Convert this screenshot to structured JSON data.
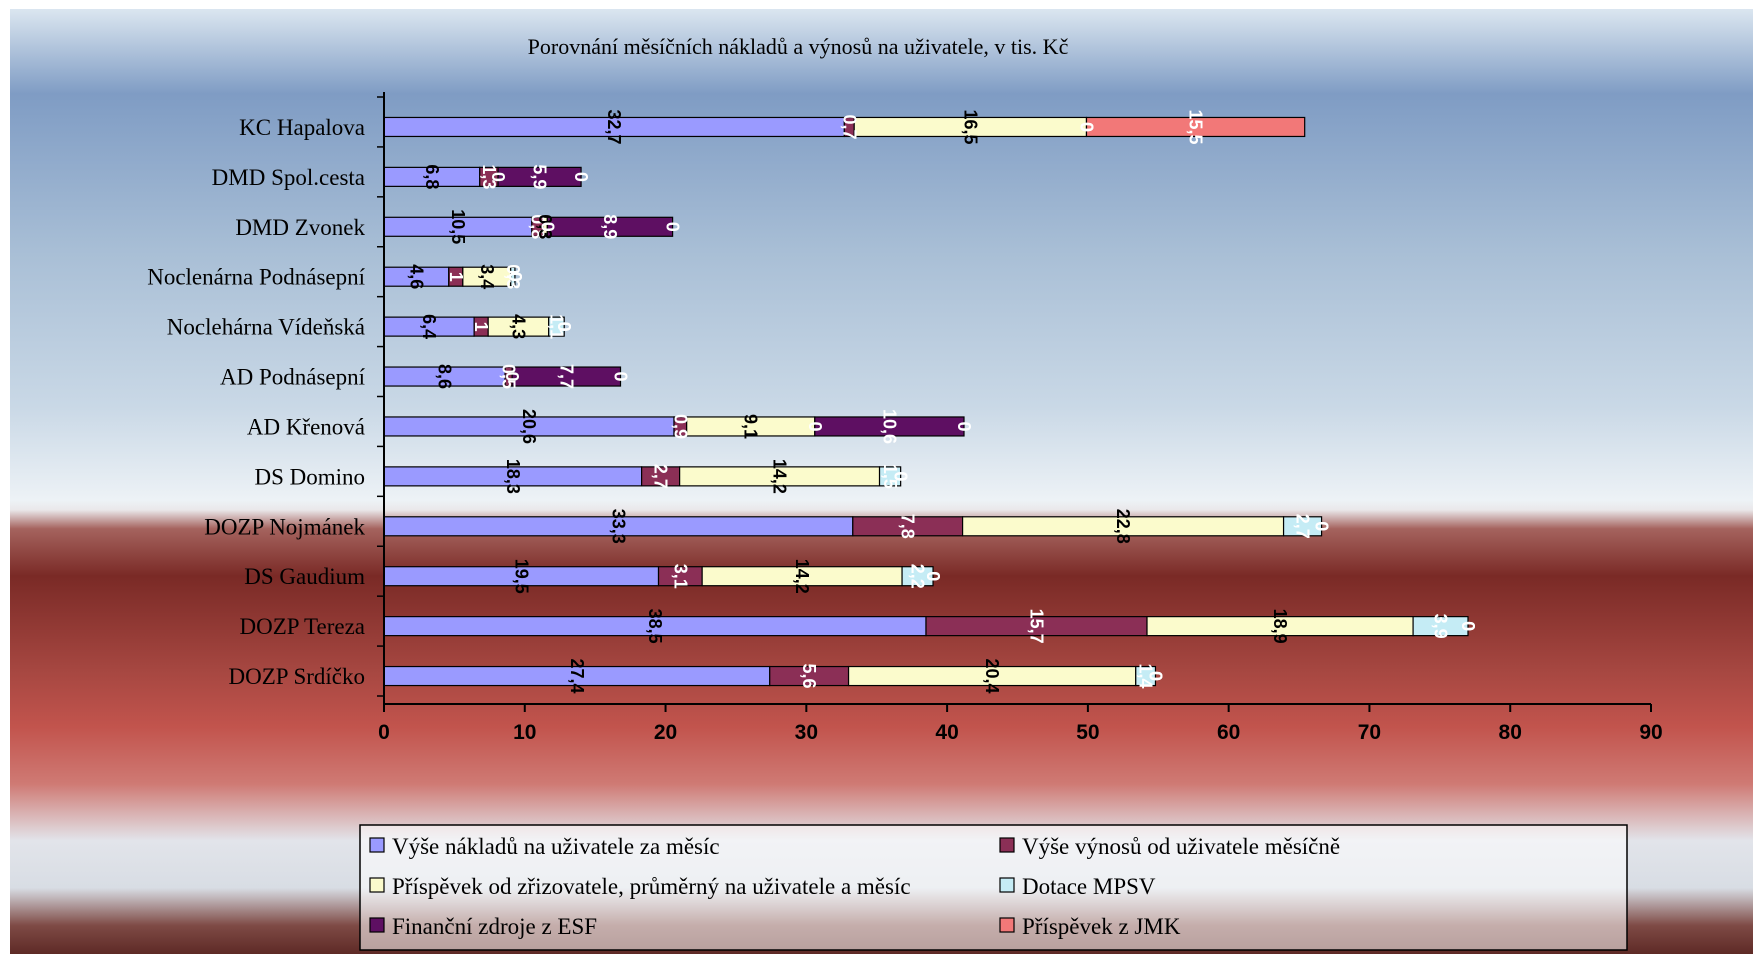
{
  "chart_data": {
    "type": "bar",
    "orientation": "horizontal",
    "stacked": true,
    "title": "Porovnání měsíčních nákladů a výnosů na uživatele, v tis. Kč",
    "categories": [
      "KC Hapalova",
      "DMD Spol.cesta",
      "DMD Zvonek",
      "Noclenárna Podnásepní",
      "Noclehárna Vídeňská",
      "AD Podnásepní",
      "AD Křenová",
      "DS Domino",
      "DOZP Nojmánek",
      "DS Gaudium",
      "DOZP Tereza",
      "DOZP Srdíčko"
    ],
    "series": [
      {
        "name": "Výše nákladů na uživatele za měsíc",
        "color": "#9a9aff",
        "values": [
          32.7,
          6.8,
          10.5,
          4.6,
          6.4,
          8.6,
          20.6,
          18.3,
          33.3,
          19.5,
          38.5,
          27.4
        ],
        "labels": [
          "32,7",
          "6,8",
          "10,5",
          "4,6",
          "6,4",
          "8,6",
          "20,6",
          "18,3",
          "33,3",
          "19,5",
          "38,5",
          "27,4"
        ]
      },
      {
        "name": "Výše výnosů od uživatele měsíčně",
        "color": "#8b2f56",
        "values": [
          0.7,
          1.3,
          0.8,
          1,
          1,
          0.5,
          0.9,
          2.7,
          7.8,
          3.1,
          15.7,
          5.6
        ],
        "labels": [
          "0,7",
          "1,3",
          "0,8",
          "1",
          "1",
          "0,5",
          "0,9",
          "2,7",
          "7,8",
          "3,1",
          "15,7",
          "5,6"
        ]
      },
      {
        "name": "Příspěvek od zřizovatele, průměrný na uživatele a měsíc",
        "color": "#fbfbcc",
        "values": [
          16.5,
          0,
          0.3,
          3.4,
          4.3,
          0,
          9.1,
          14.2,
          22.8,
          14.2,
          18.9,
          20.4
        ],
        "labels": [
          "16,5",
          "0",
          "0,3",
          "3,4",
          "4,3",
          "0",
          "9,1",
          "14,2",
          "22,8",
          "14,2",
          "18,9",
          "20,4"
        ]
      },
      {
        "name": "Dotace MPSV",
        "color": "#c5ecf5",
        "values": [
          0,
          0,
          0,
          0.3,
          1.1,
          0,
          0,
          1.5,
          2.7,
          2.2,
          3.9,
          1.4
        ],
        "labels": [
          "0",
          "0",
          "0",
          "0,3",
          "1,1",
          "0",
          "0",
          "1,5",
          "2,7",
          "2,2",
          "3,9",
          "1,4"
        ]
      },
      {
        "name": "Finanční zdroje z ESF",
        "color": "#5e0f62",
        "values": [
          0,
          5.9,
          8.9,
          0,
          0,
          7.7,
          10.6,
          0,
          0,
          0,
          0,
          0
        ],
        "labels": [
          "0",
          "5,9",
          "8,9",
          "0",
          "0",
          "7,7",
          "10,6",
          "0",
          "0",
          "0",
          "0",
          "0"
        ]
      },
      {
        "name": "Příspěvek z JMK",
        "color": "#f27878",
        "values": [
          15.5,
          0,
          0,
          0,
          0,
          0,
          0,
          0,
          0,
          0,
          0,
          0
        ],
        "labels": [
          "15,5",
          "0",
          "0",
          "0",
          "0",
          "0",
          "0",
          "0",
          "0",
          "0",
          "0",
          "0"
        ]
      }
    ],
    "xlim": [
      0,
      90
    ],
    "xticks": [
      "0",
      "10",
      "20",
      "30",
      "40",
      "50",
      "60",
      "70",
      "80",
      "90"
    ],
    "grid": false,
    "legend_position": "bottom",
    "background": "gradient"
  }
}
